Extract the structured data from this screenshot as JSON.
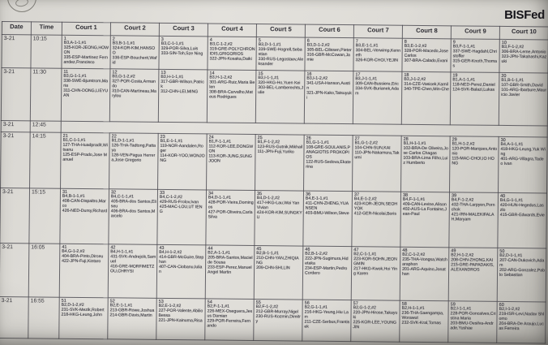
{
  "brand": "BISFed",
  "schedule": {
    "headers": [
      "Date",
      "Time",
      "Court 1",
      "Court 2",
      "Court 3",
      "Court 4",
      "Court 5",
      "Court 6",
      "Court 7",
      "Court 8",
      "Court 9",
      "Court 10"
    ],
    "rows": [
      {
        "date": "3-21",
        "time": "10:15",
        "matches": [
          {
            "no": "1",
            "code": "B3,A-1-1,#1",
            "players": [
              "325-KOR-JEONG,HOWON",
              "335-ESP-Martinez Fernandez,Francisco"
            ]
          },
          {
            "no": "2",
            "code": "B3,B-1-1,#1",
            "players": [
              "324-KOR-KIM,HANSOO",
              "336-ESP-Boucherit,Wafid"
            ]
          },
          {
            "no": "3",
            "code": "B3,C-1-1,#1",
            "players": [
              "329-POR-Silva,Luis",
              "333-SIN-Toh,Sze Ning"
            ]
          },
          {
            "no": "4",
            "code": "B3,C-1-2,#2",
            "players": [
              "319-GRE-POLYCHRONIDIS,GRIGORIOS",
              "322-JPN-Kosaka,Daiki"
            ]
          },
          {
            "no": "5",
            "code": "B3,D-1-1,#1",
            "players": [
              "339-SWE-Hogrell,Sebastian",
              "330-RUS-Legostaev,Aleksander"
            ]
          },
          {
            "no": "6",
            "code": "B3,D-1-2,#2",
            "players": [
              "305-BEL-Cilissen,Pieter",
              "316-GBR-McCowan,Jamie"
            ]
          },
          {
            "no": "7",
            "code": "B3,E-1-1,#1",
            "players": [
              "304-BEL-Verwimp,Kenneth",
              "326-KOR-CHOI,YEJIN"
            ]
          },
          {
            "no": "8",
            "code": "B3,E-1-2,#2",
            "players": [
              "328-POR-Macedo,Jose Carlos",
              "307-BRA-Calado,Evani"
            ]
          },
          {
            "no": "9",
            "code": "B3,F-1-1,#1",
            "players": [
              "337-SWE-Hagdahl,Christoffer",
              "315-GER-Knoth,Thomas"
            ]
          },
          {
            "no": "10",
            "code": "B3,F-1-2,#2",
            "players": [
              "306-BRA-Leme,Antonio",
              "323-JPN-Takahashi,Kazuki"
            ]
          }
        ]
      },
      {
        "date": "3-21",
        "time": "11:30",
        "matches": [
          {
            "no": "11",
            "code": "B3,G-1-1,#1",
            "players": [
              "338-SWE-Bjurstrom,Maria",
              "311-CHN-DONG,LIEYUAN"
            ]
          },
          {
            "no": "12",
            "code": "B3,G-1-2,#2",
            "players": [
              "327-POR-Costa,Armando",
              "310-CAN-Martineau,Marylou"
            ]
          },
          {
            "no": "13",
            "code": "B3,H-1-1,#1",
            "players": [
              "317-GBR-Wilson,Patrick",
              "312-CHN-LEI,MING"
            ]
          },
          {
            "no": "14",
            "code": "B3,H-1-2,#2",
            "players": [
              "301-ARG-Ruiz,Maria Belen",
              "308-BRA-Carvalho,Mateus Rodrigues"
            ]
          },
          {
            "no": "15",
            "code": "B3,I-1-1,#1",
            "players": [
              "320-HKG-Ho,Yuen Kei",
              "303-BEL-Lamberechts,Julie"
            ]
          },
          {
            "no": "16",
            "code": "B3,I-1-2,#2",
            "players": [
              "341-USA-Hanson,Austin",
              "321-JPN-Kako,Tatsuyuki"
            ]
          },
          {
            "no": "17",
            "code": "B3,J-1-1,#1",
            "players": [
              "309-CAN-Bussiere,Eric",
              "334-SVK-Burianek,Adam"
            ]
          },
          {
            "no": "18",
            "code": "B3,J-1-2,#2",
            "players": [
              "314-CZE-Vasicek,Kamil",
              "340-TPE-Chen,Min-Che"
            ]
          },
          {
            "no": "19",
            "code": "B1,A-1-1,#1",
            "players": [
              "118-NED-Perez,Daniel",
              "124-SVK-Balazi,Lukas"
            ]
          },
          {
            "no": "20",
            "code": "B1,B-1-1,#1",
            "players": [
              "107-GBR-Smith,David",
              "101-ARG-Ibarbure,Mauricio Javier"
            ]
          }
        ]
      },
      {
        "date": "3-21",
        "time": "12:45",
        "matches": []
      },
      {
        "date": "3-21",
        "time": "14:15",
        "matches": [
          {
            "no": "21",
            "code": "B1,C-1-1,#1",
            "players": [
              "127-THA-Huadpradit,Witsanu",
              "125-ESP-Prado,Jose Manuel"
            ]
          },
          {
            "no": "22",
            "code": "B1,D-1-1,#1",
            "players": [
              "126-THA-Tadtong,Pattaya",
              "128-VEN-Pagua Herrera,Jose Gregorio"
            ]
          },
          {
            "no": "23",
            "code": "B1,E-1-1,#1",
            "players": [
              "119-NOR-Aandalen,Roger",
              "114-KOR-YOO,WONJONG"
            ]
          },
          {
            "no": "24",
            "code": "B1,F-1-1,#1",
            "players": [
              "112-KOR-LEE,DONGWON",
              "113-KOR-JUNG,SUNGJOON"
            ]
          },
          {
            "no": "25",
            "code": "B1,F-1-2,#2",
            "players": [
              "123-RUS-Gutnik,Mikhail",
              "111-JPN-Fuji,Yuriko"
            ]
          },
          {
            "no": "26",
            "code": "B1,G-1-1,#1",
            "players": [
              "108-GRE-SOULANIS,PANAGIOTIS PROKOPIOS",
              "122-RUS-Sedova,Ekaterina"
            ]
          },
          {
            "no": "27",
            "code": "B1,G-1-2,#2",
            "players": [
              "104-CHN-SUN,KAI",
              "110-JPN-Nakamura,Takumi"
            ]
          },
          {
            "no": "28",
            "code": "B1,H-1-1,#1",
            "players": [
              "102-BRA-De Oliveira,Jose Carlos Chagas",
              "103-BRA-Lima Filho,Luiz Humberto"
            ]
          },
          {
            "no": "29",
            "code": "B1,H-1-2,#2",
            "players": [
              "120-POR-Marques,Antonio",
              "115-MAC-CHOI,IO HONG"
            ]
          },
          {
            "no": "30",
            "code": "B4,A-1-1,#1",
            "players": [
              "418-HKG-Leung,Yuk Wing",
              "401-ARG-Villagra,Tadeo Ivan"
            ]
          }
        ]
      },
      {
        "date": "3-21",
        "time": "15:15",
        "matches": [
          {
            "no": "31",
            "code": "B4,B-1-1,#1",
            "players": [
              "408-CAN-Dispaltro,Marco",
              "426-NED-Dursy,Richard"
            ]
          },
          {
            "no": "32",
            "code": "B4,C-1-1,#1",
            "players": [
              "405-BRA-dos Santos,Eliseu",
              "406-BRA-dos Santos,Marcelo"
            ]
          },
          {
            "no": "33",
            "code": "B4,C-1-2,#2",
            "players": [
              "429-RUS-Frolov,Ivan",
              "425-MAC-LOU,UT IENG"
            ]
          },
          {
            "no": "34",
            "code": "B4,D-1-1,#1",
            "players": [
              "428-POR-Vieira,Domingos",
              "427-POR-Oliveira,Carla Silva"
            ]
          },
          {
            "no": "35",
            "code": "B4,D-1-2,#2",
            "players": [
              "417-HKG-Lau,Wai Yan Vivian",
              "424-KOR-KIM,SUNGKYU"
            ]
          },
          {
            "no": "36",
            "code": "B4,E-1-1,#1",
            "players": [
              "411-CHN-ZHENG,YUANSEN",
              "403-BMU-Wilson,Steve"
            ]
          },
          {
            "no": "37",
            "code": "B4,E-1-2,#2",
            "players": [
              "423-KOR-JEON,SEOHYOK",
              "412-GER-Nicolai,Boris"
            ]
          },
          {
            "no": "38",
            "code": "B4,F-1-1,#1",
            "players": [
              "409-CAN-Levine,Alison",
              "402-AUS-La Fontaine,Jean-Paul"
            ]
          },
          {
            "no": "39",
            "code": "B4,F-1-2,#2",
            "players": [
              "432-THA-Larpyen,Pornchok",
              "421-IRN-MALEKIFALAH,Maryam"
            ]
          },
          {
            "no": "40",
            "code": "B4,G-1-1,#1",
            "players": [
              "420-HUN-Hegedus,Laszlo",
              "415-GBR-Edwards,Evie"
            ]
          }
        ]
      },
      {
        "date": "3-21",
        "time": "16:05",
        "matches": [
          {
            "no": "41",
            "code": "B4,G-1-2,#2",
            "players": [
              "404-BRA-Pinto,Dirceu",
              "422-JPN-Fuji,Kintaro"
            ]
          },
          {
            "no": "42",
            "code": "B4,H-1-1,#1",
            "players": [
              "431-SVK-Andrejcik,Samuel",
              "416-GRE-MORFIMETZOU,CHRYSI"
            ]
          },
          {
            "no": "43",
            "code": "B4,H-1-2,#2",
            "players": [
              "414-GBR-McGuire,Stephan",
              "407-CAN-Ciobanu,Iulian"
            ]
          },
          {
            "no": "44",
            "code": "B2,A-1-1,#1",
            "players": [
              "205-BRA-Santos,Maciel de Sousa",
              "233-ESP-Perez,Manuel Angel Martin"
            ]
          },
          {
            "no": "45",
            "code": "B2,B-1-1,#1",
            "players": [
              "210-CHN-YAN,ZHIQIANG",
              "209-CHN-SHI,LIN"
            ]
          },
          {
            "no": "46",
            "code": "B2,B-1-2,#2",
            "players": [
              "222-JPN-Sugimura,Hidetaka",
              "234-ESP-Martin,Pedro Cordero"
            ]
          },
          {
            "no": "47",
            "code": "B2,C-1-1,#1",
            "players": [
              "223-KOR-SOHN,JEONGMIN",
              "217-HKG-Kwok,Hoi Ying Karen"
            ]
          },
          {
            "no": "48",
            "code": "B2,C-1-2,#2",
            "players": [
              "235-THA-Vongsa,Watcharaphon",
              "201-ARG-Aquino,Jonathan"
            ]
          },
          {
            "no": "49",
            "code": "B2,H-1-2,#2",
            "players": [
              "208-CHN-ZHONG,KAI",
              "215-GRE-PAPADAKIS,ALEXANDROS"
            ]
          },
          {
            "no": "50",
            "code": "B2,D-1-1,#1",
            "players": [
              "207-CAN-Dukovich,Adam",
              "202-ARG-Gonzalez,Pablo Sebastian"
            ]
          }
        ]
      },
      {
        "date": "3-21",
        "time": "16:55",
        "matches": [
          {
            "no": "51",
            "code": "B2,D-1-2,#2",
            "players": [
              "231-SVK-Mezik,Robert",
              "218-HKG-Leung,John"
            ]
          },
          {
            "no": "52",
            "code": "B2,E-1-1,#1",
            "players": [
              "213-GBR-Rowe,Joshua",
              "214-GBR-Davis,Martin"
            ]
          },
          {
            "no": "53",
            "code": "B2,E-1-2,#2",
            "players": [
              "227-POR-Valente,Abilio Bessa",
              "221-JPN-Kainuma,Risa"
            ]
          },
          {
            "no": "54",
            "code": "B2,F-1-1,#1",
            "players": [
              "226-MEX-Oseguera,Jesus Damian",
              "229-POR-Ferreira,Fernando"
            ]
          },
          {
            "no": "55",
            "code": "B2,F-1-2,#2",
            "players": [
              "212-GBR-Murray,Nigel",
              "230-RUS-Kozmin,Dimitry"
            ]
          },
          {
            "no": "56",
            "code": "B2,G-1-1,#1",
            "players": [
              "216-HKG-Yeung,Hiu Lam",
              "211-CZE-Serbus,Frantisek"
            ]
          },
          {
            "no": "57",
            "code": "B2,G-1-2,#2",
            "players": [
              "220-JPN-Hirose,Takayuki",
              "225-KOR-LEE,YOUNGJIN"
            ]
          },
          {
            "no": "58",
            "code": "B2,H-1-1,#1",
            "players": [
              "236-THA-Saengampa,Worawut",
              "232-SVK-Kral,Tomas"
            ]
          },
          {
            "no": "59",
            "code": "B2,I-1-1,#1",
            "players": [
              "228-POR-Goncalves,Cristina Maria",
              "203-BMU-Desilva-Andrade,Yushae"
            ]
          },
          {
            "no": "60",
            "code": "B2,I-1-2,#2",
            "players": [
              "219-ISR-Levi,Nadav Shlomo",
              "204-BRA-De Araujo,Lucas Ferreira"
            ]
          }
        ]
      }
    ]
  }
}
